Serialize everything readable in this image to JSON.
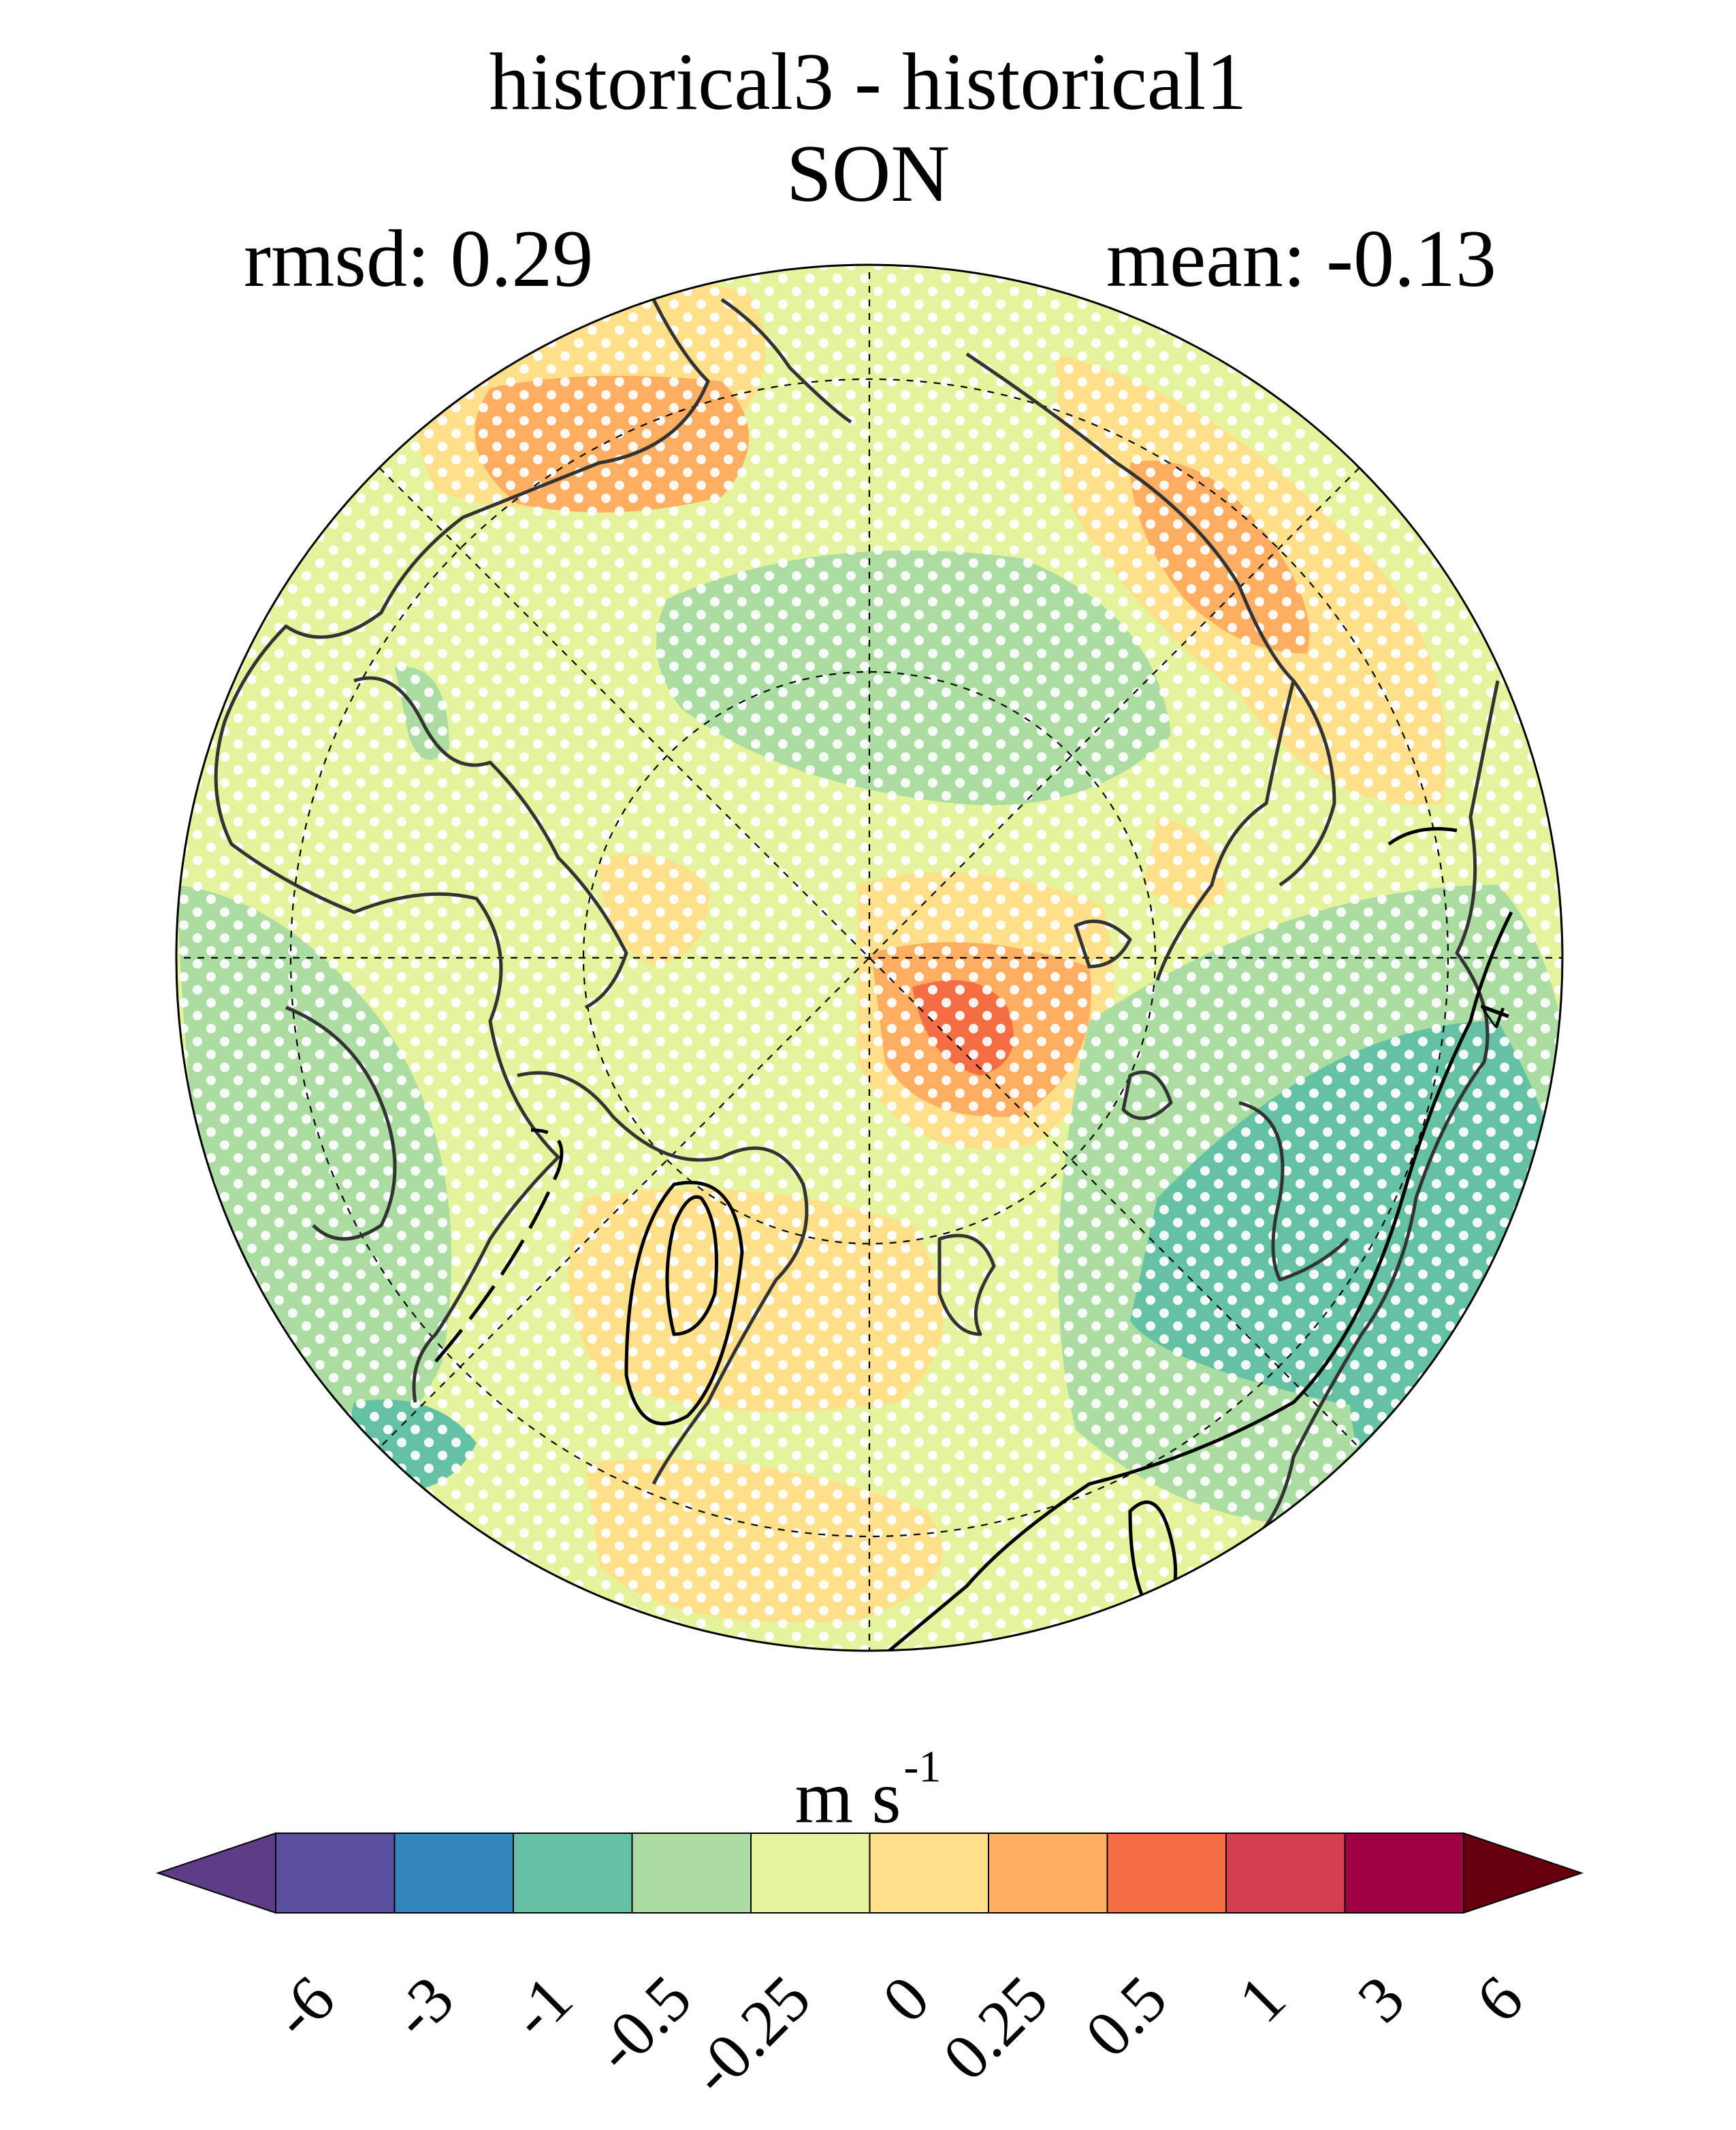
{
  "figure": {
    "title_line1": "historical3 - historical1",
    "title_line2": "SON",
    "rmsd_label": "rmsd: 0.29",
    "mean_label": "mean: -0.13",
    "colorbar_units": "m s",
    "colorbar_units_exponent": "-1"
  },
  "chart_data": {
    "type": "heatmap",
    "projection": "north-polar-stereographic",
    "title": "historical3 - historical1",
    "season": "SON",
    "rmsd": 0.29,
    "mean": -0.13,
    "units": "m s-1",
    "colorbar": {
      "levels": [
        -6,
        -3,
        -1,
        -0.5,
        -0.25,
        0,
        0.25,
        0.5,
        1,
        3,
        6
      ],
      "tick_labels": [
        "-6",
        "-3",
        "-1",
        "-0.5",
        "-0.25",
        "0",
        "0.25",
        "0.5",
        "1",
        "3",
        "6"
      ],
      "colors": [
        "#5e3c86",
        "#5b50a0",
        "#3286bc",
        "#64c1a3",
        "#abdca2",
        "#e5f49c",
        "#fee08b",
        "#fdae61",
        "#f46d43",
        "#d53e4f",
        "#9e0142",
        "#66000f"
      ],
      "extend": "both"
    },
    "contour_label": "4",
    "stippling": "white dots mark significant differences"
  }
}
